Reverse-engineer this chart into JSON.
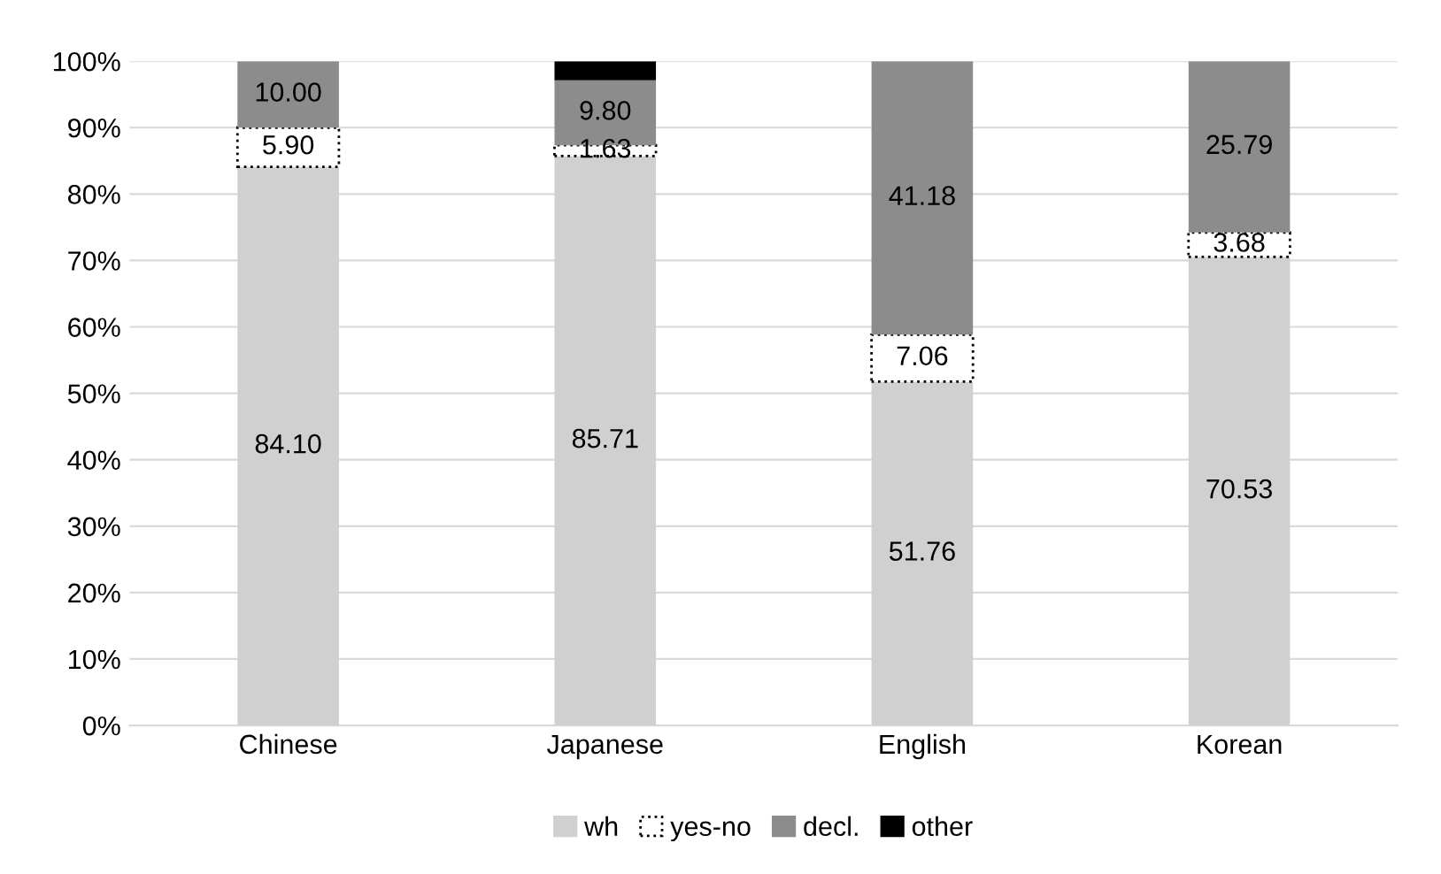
{
  "chart_data": {
    "type": "bar",
    "stacked": true,
    "categories": [
      "Chinese",
      "Japanese",
      "English",
      "Korean"
    ],
    "series": [
      {
        "name": "wh",
        "color": "#d0d0d0",
        "values": [
          84.1,
          85.71,
          51.76,
          70.53
        ],
        "value_labels": [
          "84.10",
          "85.71",
          "51.76",
          "70.53"
        ]
      },
      {
        "name": "yes-no",
        "color": "#ffffff",
        "values": [
          5.9,
          1.63,
          7.06,
          3.68
        ],
        "value_labels": [
          "5.90",
          "1.63",
          "7.06",
          "3.68"
        ]
      },
      {
        "name": "decl.",
        "color": "#8c8c8c",
        "values": [
          10.0,
          9.8,
          41.18,
          25.79
        ],
        "value_labels": [
          "10.00",
          "9.80",
          "41.18",
          "25.79"
        ]
      },
      {
        "name": "other",
        "color": "#000000",
        "values": [
          0,
          2.86,
          0,
          0
        ],
        "value_labels": [
          null,
          null,
          null,
          null
        ]
      }
    ],
    "ylim": [
      0,
      100
    ],
    "yticks": [
      {
        "value": 0,
        "label": "0%"
      },
      {
        "value": 10,
        "label": "10%"
      },
      {
        "value": 20,
        "label": "20%"
      },
      {
        "value": 30,
        "label": "30%"
      },
      {
        "value": 40,
        "label": "40%"
      },
      {
        "value": 50,
        "label": "50%"
      },
      {
        "value": 60,
        "label": "60%"
      },
      {
        "value": 70,
        "label": "70%"
      },
      {
        "value": 80,
        "label": "80%"
      },
      {
        "value": 90,
        "label": "90%"
      },
      {
        "value": 100,
        "label": "100%"
      }
    ],
    "grid": "y",
    "legend": "bottom"
  }
}
